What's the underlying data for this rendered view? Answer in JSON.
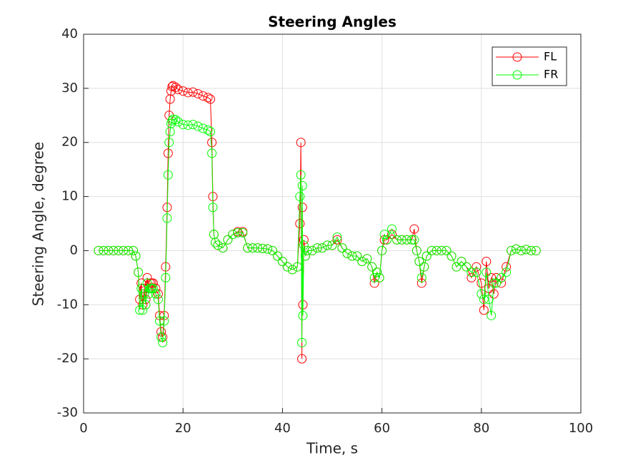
{
  "chart_data": {
    "type": "line",
    "title": "Steering Angles",
    "xlabel": "Time, s",
    "ylabel": "Steering Angle, degree",
    "x": [
      3,
      4,
      5,
      6,
      7,
      8,
      9,
      10,
      10.5,
      11,
      11.3,
      11.6,
      11.9,
      12.2,
      12.5,
      12.8,
      13.1,
      13.4,
      13.7,
      14,
      14.5,
      15,
      15.3,
      15.6,
      15.9,
      16.2,
      16.5,
      16.8,
      17,
      17.2,
      17.4,
      17.6,
      17.8,
      18,
      18.5,
      19,
      20,
      21,
      22,
      23,
      24,
      25,
      25.5,
      25.8,
      26,
      26.2,
      26.5,
      27,
      28,
      29,
      30,
      31,
      32,
      33,
      34,
      35,
      36,
      37,
      38,
      39,
      40,
      41,
      42,
      43,
      43.5,
      43.7,
      43.9,
      44,
      44.1,
      44.3,
      44.6,
      45,
      46,
      47,
      48,
      49,
      50,
      51,
      52,
      53,
      54,
      55,
      56,
      57,
      58,
      58.5,
      59,
      59.5,
      60,
      60.5,
      61,
      62,
      63,
      64,
      65,
      66,
      66.5,
      67,
      67.5,
      68,
      68.5,
      69,
      70,
      71,
      72,
      73,
      74,
      75,
      76,
      77,
      78,
      79,
      80,
      80.5,
      81,
      81.5,
      82,
      82.5,
      83,
      84,
      85,
      86,
      87,
      88,
      89,
      90,
      91
    ],
    "series": [
      {
        "name": "FL",
        "color": "#ff0000",
        "values": [
          0,
          0,
          0,
          0,
          0,
          0,
          0,
          0,
          -1,
          -4,
          -9,
          -6,
          -10,
          -7,
          -9,
          -5,
          -7,
          -6,
          -6,
          -6,
          -7,
          -8,
          -12,
          -15,
          -16,
          -12,
          -3,
          8,
          18,
          25,
          28,
          29.5,
          30.3,
          30.5,
          30.2,
          29.8,
          29.5,
          29.2,
          29.3,
          29,
          28.6,
          28.3,
          28,
          20,
          10,
          3,
          1.5,
          1,
          0.5,
          2,
          3,
          3.5,
          3.5,
          0.5,
          0.5,
          0.5,
          0.4,
          0.3,
          0,
          -1,
          -2,
          -3,
          -3.5,
          -3,
          5,
          20,
          -20,
          8,
          -10,
          2,
          -1,
          0,
          0,
          0.5,
          0.5,
          1,
          1,
          2,
          0.5,
          -0.5,
          -1,
          -1,
          -2,
          -1.5,
          -3,
          -6,
          -4,
          -5,
          0,
          2,
          2,
          3,
          2,
          2,
          2,
          2,
          4,
          0,
          -2,
          -6,
          -3,
          -1,
          0,
          0,
          0,
          0,
          -1,
          -3,
          -2,
          -3,
          -5,
          -3,
          -6,
          -11,
          -2,
          -7,
          -5,
          -8,
          -5,
          -6,
          -3,
          0,
          0.3,
          0,
          0.2,
          0,
          0
        ]
      },
      {
        "name": "FR",
        "color": "#00ff00",
        "values": [
          0,
          0,
          0,
          0,
          0,
          0,
          0,
          0,
          -1,
          -4,
          -11,
          -7,
          -11,
          -8,
          -10,
          -6,
          -8,
          -7,
          -7,
          -7,
          -8,
          -9,
          -13,
          -16,
          -17,
          -13,
          -5,
          6,
          14,
          20,
          22,
          23.5,
          24,
          24.3,
          24.2,
          23.8,
          23.3,
          23.2,
          23.3,
          23,
          22.6,
          22.3,
          22,
          18,
          8,
          3,
          1.5,
          1,
          0.5,
          2,
          3,
          3.3,
          3.3,
          0.5,
          0.5,
          0.5,
          0.4,
          0.3,
          0,
          -1,
          -2,
          -3,
          -3.5,
          -3,
          10,
          14,
          -17,
          12,
          -12,
          1,
          -1,
          0,
          0,
          0.5,
          0.5,
          1,
          1,
          2.5,
          0.5,
          -0.5,
          -1,
          -1,
          -2,
          -1.5,
          -3,
          -5,
          -4,
          -5,
          0,
          3,
          2,
          4,
          2,
          2,
          2,
          2,
          2,
          0,
          -2,
          -5,
          -3,
          -1,
          0,
          0,
          0,
          0,
          -1,
          -3,
          -2,
          -3,
          -4,
          -4,
          -8,
          -9,
          -4,
          -9,
          -12,
          -6,
          -6,
          -5,
          -4,
          0,
          0.3,
          0,
          0.2,
          0,
          0
        ]
      }
    ],
    "xlim": [
      0,
      100
    ],
    "xticks": [
      0,
      20,
      40,
      60,
      80,
      100
    ],
    "ylim": [
      -30,
      40
    ],
    "yticks": [
      -30,
      -20,
      -10,
      0,
      10,
      20,
      30,
      40
    ],
    "grid": true,
    "legend": "upper right"
  }
}
